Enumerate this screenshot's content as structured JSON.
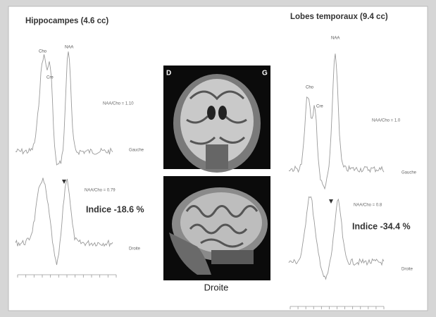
{
  "left_panel": {
    "title": "Hippocampes (4.6 cc)",
    "peaks": [
      "Cho",
      "Cre",
      "NAA"
    ],
    "upper": {
      "ratio": "NAA/Cho = 1.10",
      "side": "Gauche"
    },
    "lower": {
      "ratio": "NAA/Cho = 0.79",
      "index": "Indice -18.6 %",
      "side": "Droite"
    }
  },
  "right_panel": {
    "title": "Lobes temporaux (9.4 cc)",
    "peaks": [
      "NAA",
      "Cho",
      "Cre"
    ],
    "upper": {
      "ratio": "NAA/Cho = 1.0",
      "side": "Gauche"
    },
    "lower": {
      "ratio": "NAA/Cho = 0.8",
      "index": "Indice -34.4 %",
      "side": "Droite"
    }
  },
  "images": {
    "coronal_left": "D",
    "coronal_right": "G",
    "caption": "Droite"
  }
}
